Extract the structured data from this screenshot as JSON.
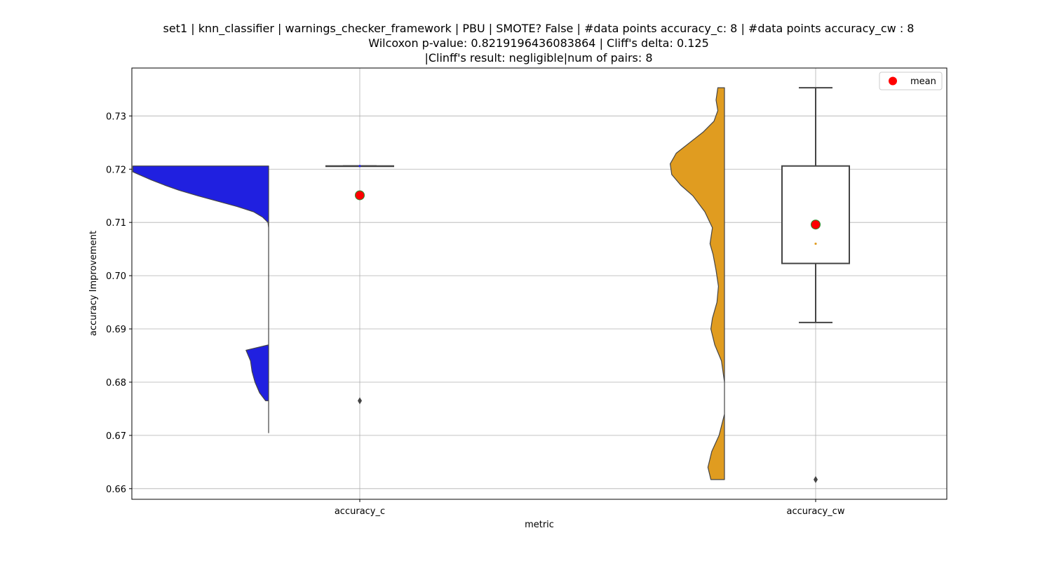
{
  "chart_data": {
    "type": "violin+box",
    "title_lines": [
      "set1 | knn_classifier | warnings_checker_framework | PBU | SMOTE? False | #data points accuracy_c: 8 | #data points accuracy_cw : 8",
      "Wilcoxon p-value: 0.8219196436083864 | Cliff's delta: 0.125",
      "|Clinff's result: negligible|num of pairs: 8"
    ],
    "xlabel": "metric",
    "ylabel": "accuracy Improvement",
    "ylim": [
      0.658,
      0.739
    ],
    "yticks": [
      0.66,
      0.67,
      0.68,
      0.69,
      0.7,
      0.71,
      0.72,
      0.73
    ],
    "ytick_labels": [
      "0.66",
      "0.67",
      "0.68",
      "0.69",
      "0.70",
      "0.71",
      "0.72",
      "0.73"
    ],
    "categories": [
      "accuracy_c",
      "accuracy_cw"
    ],
    "grid": true,
    "legend": {
      "location": "top-right",
      "entries": [
        {
          "label": "mean",
          "color": "#ff0000"
        }
      ]
    },
    "series": [
      {
        "category": "accuracy_c",
        "violin_color": "#2020e0",
        "violin_profile": [
          [
            0.6765,
            0.1
          ],
          [
            0.678,
            0.3
          ],
          [
            0.68,
            0.45
          ],
          [
            0.682,
            0.55
          ],
          [
            0.684,
            0.6
          ],
          [
            0.686,
            0.75
          ],
          [
            0.687,
            0.0
          ],
          [
            0.6705,
            0.0
          ],
          [
            0.709,
            0.0
          ],
          [
            0.71,
            0.02
          ],
          [
            0.711,
            0.2
          ],
          [
            0.712,
            0.5
          ],
          [
            0.713,
            1.05
          ],
          [
            0.714,
            1.7
          ],
          [
            0.715,
            2.35
          ],
          [
            0.716,
            2.95
          ],
          [
            0.717,
            3.45
          ],
          [
            0.718,
            3.9
          ],
          [
            0.719,
            4.3
          ],
          [
            0.7195,
            4.5
          ],
          [
            0.7206,
            4.5
          ]
        ],
        "box": {
          "q1": 0.7206,
          "median": 0.7206,
          "q3": 0.7206,
          "whisker_low": 0.7206,
          "whisker_high": 0.7206,
          "outliers": [
            0.6765
          ]
        },
        "mean": 0.7151
      },
      {
        "category": "accuracy_cw",
        "violin_color": "#e09c20",
        "violin_profile": [
          [
            0.6617,
            0.45
          ],
          [
            0.664,
            0.55
          ],
          [
            0.667,
            0.42
          ],
          [
            0.67,
            0.18
          ],
          [
            0.674,
            0.0
          ],
          [
            0.68,
            0.0
          ],
          [
            0.684,
            0.1
          ],
          [
            0.687,
            0.32
          ],
          [
            0.69,
            0.45
          ],
          [
            0.692,
            0.4
          ],
          [
            0.695,
            0.25
          ],
          [
            0.698,
            0.2
          ],
          [
            0.701,
            0.28
          ],
          [
            0.704,
            0.38
          ],
          [
            0.706,
            0.48
          ],
          [
            0.709,
            0.4
          ],
          [
            0.712,
            0.65
          ],
          [
            0.715,
            1.05
          ],
          [
            0.717,
            1.45
          ],
          [
            0.719,
            1.75
          ],
          [
            0.721,
            1.8
          ],
          [
            0.723,
            1.6
          ],
          [
            0.725,
            1.15
          ],
          [
            0.727,
            0.7
          ],
          [
            0.729,
            0.35
          ],
          [
            0.731,
            0.22
          ],
          [
            0.733,
            0.28
          ],
          [
            0.7353,
            0.22
          ]
        ],
        "box": {
          "q1": 0.7023,
          "median": 0.706,
          "q3": 0.7206,
          "whisker_low": 0.6912,
          "whisker_high": 0.7353,
          "outliers": [
            0.6617
          ]
        },
        "mean": 0.7096
      }
    ]
  }
}
